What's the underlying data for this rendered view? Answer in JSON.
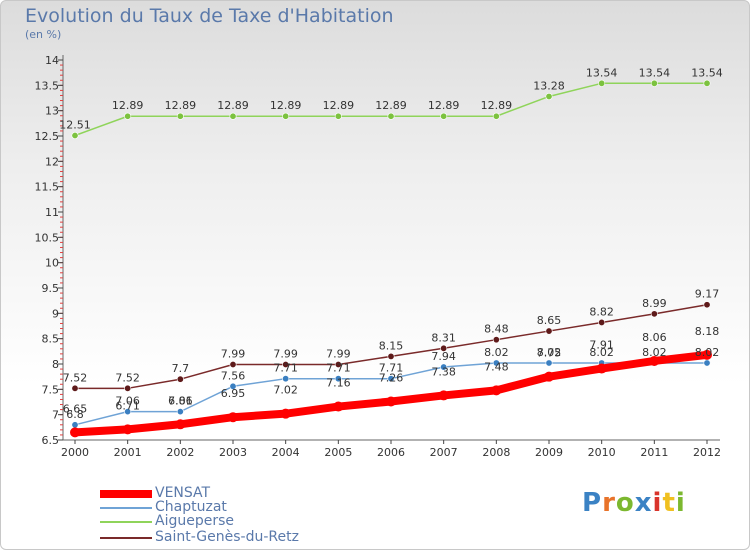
{
  "header": {
    "title": "Evolution du Taux de Taxe d'Habitation",
    "unit": "(en %)"
  },
  "logo": {
    "text": "Proxiti",
    "colors": [
      "#3b82c4",
      "#e8732a",
      "#7cb82f",
      "#3b82c4",
      "#d9342b",
      "#f0c020",
      "#7cb82f"
    ]
  },
  "chart_data": {
    "type": "line",
    "x": [
      "2000",
      "2001",
      "2002",
      "2003",
      "2004",
      "2005",
      "2006",
      "2007",
      "2008",
      "2009",
      "2010",
      "2011",
      "2012"
    ],
    "ylim": [
      6.5,
      14
    ],
    "yticks": [
      "6.5",
      "7",
      "7.5",
      "8",
      "8.5",
      "9",
      "9.5",
      "10",
      "10.5",
      "11",
      "11.5",
      "12",
      "12.5",
      "13",
      "13.5",
      "14"
    ],
    "grid": false,
    "legend_position": "bottom-left",
    "series": [
      {
        "name": "VENSAT",
        "color": "#ff0000",
        "marker": "#ff0000",
        "width": 8,
        "values": [
          6.65,
          6.71,
          6.81,
          6.95,
          7.02,
          7.16,
          7.26,
          7.38,
          7.48,
          7.75,
          7.91,
          8.06,
          8.18
        ],
        "labels": [
          "6.65",
          "6.71",
          "6.81",
          "6.95",
          "7.02",
          "7.16",
          "7.26",
          "7.38",
          "7.48",
          "7.75",
          "7.91",
          "8.06",
          "8.18"
        ]
      },
      {
        "name": "Chaptuzat",
        "color": "#6fa3d6",
        "marker": "#3a7fc1",
        "width": 1.5,
        "values": [
          6.8,
          7.06,
          7.06,
          7.56,
          7.71,
          7.71,
          7.71,
          7.94,
          8.02,
          8.02,
          8.02,
          8.02,
          8.02
        ],
        "labels": [
          "6.8",
          "7.06",
          "7.06",
          "7.56",
          "7.71",
          "7.71",
          "7.71",
          "7.94",
          "8.02",
          "8.02",
          "8.02",
          "8.02",
          "8.02"
        ]
      },
      {
        "name": "Aigueperse",
        "color": "#8fd45a",
        "marker": "#7cc23f",
        "width": 1.5,
        "values": [
          12.51,
          12.89,
          12.89,
          12.89,
          12.89,
          12.89,
          12.89,
          12.89,
          12.89,
          13.28,
          13.54,
          13.54,
          13.54
        ],
        "labels": [
          "12.51",
          "12.89",
          "12.89",
          "12.89",
          "12.89",
          "12.89",
          "12.89",
          "12.89",
          "12.89",
          "13.28",
          "13.54",
          "13.54",
          "13.54"
        ]
      },
      {
        "name": "Saint-Genès-du-Retz",
        "color": "#7a2a2a",
        "marker": "#5e1a1a",
        "width": 1.5,
        "values": [
          7.52,
          7.52,
          7.7,
          7.99,
          7.99,
          7.99,
          8.15,
          8.31,
          8.48,
          8.65,
          8.82,
          8.99,
          9.17
        ],
        "labels": [
          "7.52",
          "7.52",
          "7.7",
          "7.99",
          "7.99",
          "7.99",
          "8.15",
          "8.31",
          "8.48",
          "8.65",
          "8.82",
          "8.99",
          "9.17"
        ]
      }
    ]
  }
}
